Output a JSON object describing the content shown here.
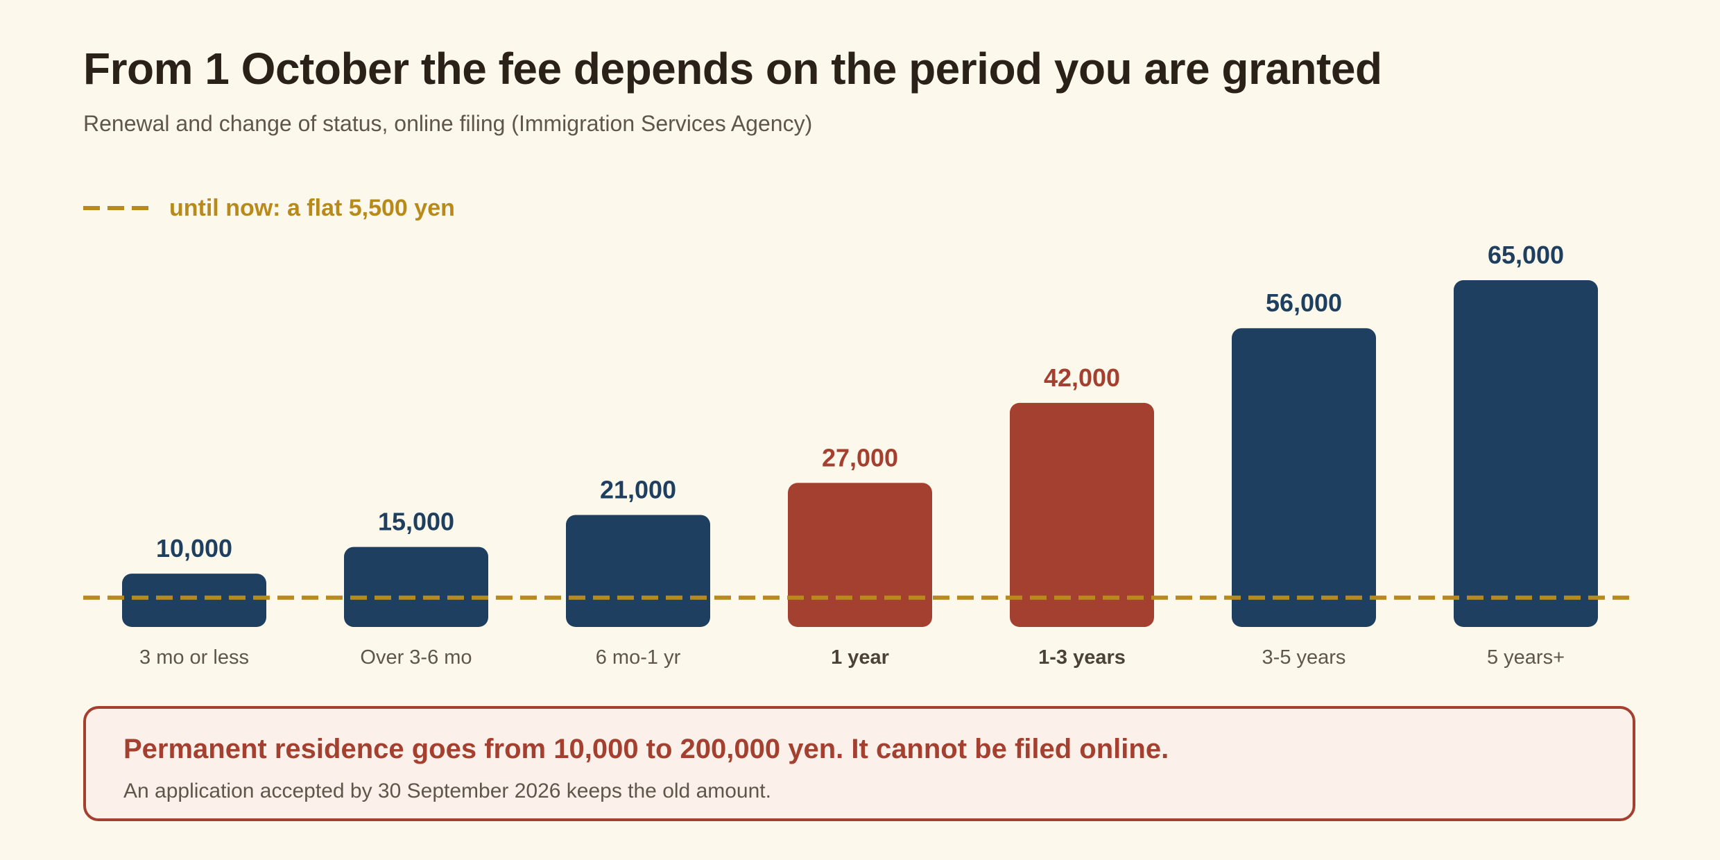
{
  "header": {
    "title": "From 1 October the fee depends on the period you are granted",
    "subtitle": "Renewal and change of status, online filing (Immigration Services Agency)"
  },
  "legend": {
    "reference_label": "until now: a flat 5,500 yen"
  },
  "note": {
    "headline": "Permanent residence goes from 10,000 to 200,000 yen. It cannot be filed online.",
    "detail": "An application accepted by 30 September 2026 keeps the old amount."
  },
  "colors": {
    "background": "#fdf8ec",
    "bar_default": "#1e3f5f",
    "bar_highlight": "#a4402f",
    "reference_line": "#b88a1b",
    "text_dark": "#2a2118",
    "text_muted": "#5e564b"
  },
  "chart_data": {
    "type": "bar",
    "title": "From 1 October the fee depends on the period you are granted",
    "subtitle": "Renewal and change of status, online filing (Immigration Services Agency)",
    "categories": [
      "3 mo or less",
      "Over 3-6 mo",
      "6 mo-1 yr",
      "1 year",
      "1-3 years",
      "3-5 years",
      "5 years+"
    ],
    "values": [
      10000,
      15000,
      21000,
      27000,
      42000,
      56000,
      65000
    ],
    "value_labels": [
      "10,000",
      "15,000",
      "21,000",
      "27,000",
      "42,000",
      "56,000",
      "65,000"
    ],
    "highlighted": [
      false,
      false,
      false,
      true,
      true,
      false,
      false
    ],
    "reference_line": {
      "value": 5500,
      "label": "until now: a flat 5,500 yen",
      "style": "dashed"
    },
    "y_axis_visible": false,
    "ylim": [
      0,
      65000
    ],
    "grid": false,
    "legend_position": "top-left"
  }
}
